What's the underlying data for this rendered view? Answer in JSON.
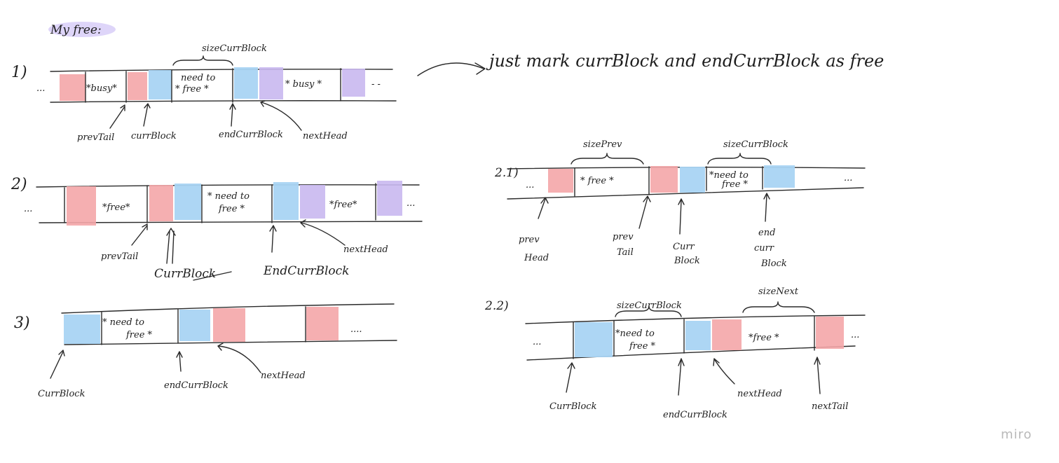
{
  "title": "My free:",
  "watermark": "miro",
  "colors": {
    "pink": "#f4a6a8",
    "blue": "#a9d4f3",
    "purple": "#c9b8ef",
    "highlight": "#c8b9f5",
    "ink": "#2a2a2a"
  },
  "case1": {
    "number": "1)",
    "ellipsis_left": "...",
    "ellipsis_right": "- -",
    "busy_left": "*busy*",
    "need_to_free_1": "need to",
    "need_to_free_2": "* free  *",
    "busy_right": "* busy *",
    "brace_label": "sizeCurrBlock",
    "label_prevtail": "prevTail",
    "label_currblock": "currBlock",
    "label_endcurrblock": "endCurrBlock",
    "label_nexthead": "nextHead",
    "note": "just mark currBlock and endCurrBlock as free"
  },
  "case2": {
    "number": "2)",
    "ellipsis_left": "...",
    "ellipsis_right": "...",
    "free_left": "*free*",
    "need_to_free_1": "* need to",
    "need_to_free_2": "free  *",
    "free_right": "*free*",
    "label_prevtail": "prevTail",
    "label_currblock": "CurrBlock",
    "label_endcurrblock": "EndCurrBlock",
    "label_nexthead": "nextHead"
  },
  "case3": {
    "number": "3)",
    "need_to_free_1": "* need to",
    "need_to_free_2": "free  *",
    "ellipsis_right": "....",
    "label_currblock": "CurrBlock",
    "label_endcurrblock": "endCurrBlock",
    "label_nexthead": "nextHead"
  },
  "case21": {
    "number": "2.1)",
    "ellipsis_left": "...",
    "ellipsis_right": "...",
    "brace_left_label": "sizePrev",
    "brace_right_label": "sizeCurrBlock",
    "free_text": "* free  *",
    "need_to_free_1": "*need to",
    "need_to_free_2": "free  *",
    "label_prev_head_1": "prev",
    "label_prev_head_2": "Head",
    "label_prev_tail_1": "prev",
    "label_prev_tail_2": "Tail",
    "label_curr_block_1": "Curr",
    "label_curr_block_2": "Block",
    "label_end_1": "end",
    "label_end_2": "curr",
    "label_end_3": "Block"
  },
  "case22": {
    "number": "2.2)",
    "ellipsis_left": "...",
    "ellipsis_right": "...",
    "brace_left_label": "sizeCurrBlock",
    "brace_right_label": "sizeNext",
    "need_to_free_1": "*need to",
    "need_to_free_2": "free  *",
    "free_text": "*free *",
    "label_currblock": "CurrBlock",
    "label_endcurrblock": "endCurrBlock",
    "label_nexthead": "nextHead",
    "label_nexttail": "nextTail"
  }
}
